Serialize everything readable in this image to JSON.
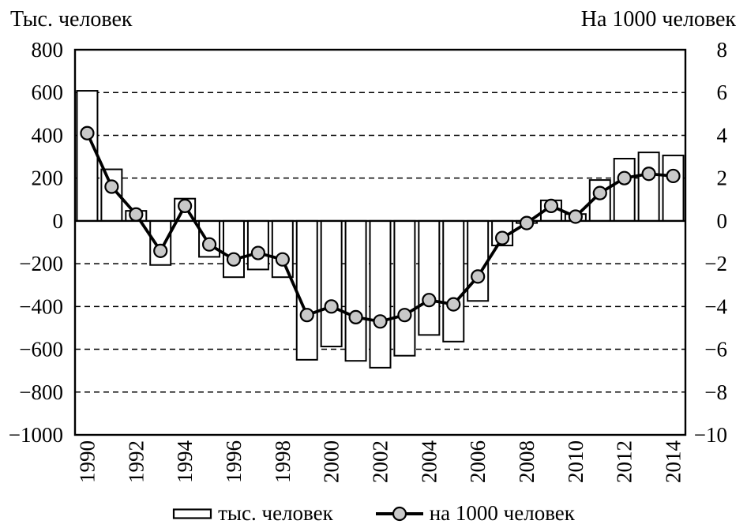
{
  "chart_data": {
    "type": "bar",
    "subtype": "combo-bar-line-dual-axis",
    "x": [
      1990,
      1991,
      1992,
      1993,
      1994,
      1995,
      1996,
      1997,
      1998,
      1999,
      2000,
      2001,
      2002,
      2003,
      2004,
      2005,
      2006,
      2007,
      2008,
      2009,
      2010,
      2011,
      2012,
      2013,
      2014
    ],
    "series": [
      {
        "name": "тыс. человек",
        "type": "bar",
        "axis": "left",
        "values": [
          608,
          241,
          47,
          -206,
          104,
          -168,
          -263,
          -227,
          -263,
          -649,
          -587,
          -654,
          -686,
          -630,
          -533,
          -564,
          -374,
          -115,
          -10,
          96,
          32,
          191,
          291,
          320,
          306
        ]
      },
      {
        "name": "на 1000 человек",
        "type": "line",
        "axis": "right",
        "values": [
          4.1,
          1.6,
          0.3,
          -1.4,
          0.7,
          -1.1,
          -1.8,
          -1.5,
          -1.8,
          -4.4,
          -4.0,
          -4.5,
          -4.7,
          -4.4,
          -3.7,
          -3.9,
          -2.6,
          -0.8,
          -0.1,
          0.7,
          0.2,
          1.3,
          2.0,
          2.2,
          2.1
        ]
      }
    ],
    "left_axis": {
      "title": "Тыс. человек",
      "min": -1000,
      "max": 800,
      "tick_step": 200,
      "tick_labels": [
        "800",
        "600",
        "400",
        "200",
        "0",
        "−200",
        "−400",
        "−600",
        "−800",
        "−1000"
      ]
    },
    "right_axis": {
      "title": "На 1000 человек",
      "min": -10,
      "max": 8,
      "tick_step": 2,
      "tick_labels": [
        "8",
        "6",
        "4",
        "2",
        "0",
        "−2",
        "−4",
        "−6",
        "−8",
        "−10"
      ]
    },
    "x_axis": {
      "tick_labels": [
        "1990",
        "1992",
        "1994",
        "1996",
        "1998",
        "2000",
        "2002",
        "2004",
        "2006",
        "2008",
        "2010",
        "2012",
        "2014"
      ],
      "label_rotation_deg": -90
    },
    "grid": {
      "horizontal": "dashed",
      "vertical": "none",
      "zero_line": "solid"
    },
    "legend": {
      "position": "bottom",
      "items": [
        {
          "label": "тыс. человек",
          "marker": "bar-outline"
        },
        {
          "label": "на 1000 человек",
          "marker": "line-circle"
        }
      ]
    },
    "colors": {
      "background": "#ffffff",
      "bar_fill": "#ffffff",
      "bar_stroke": "#000000",
      "line": "#000000",
      "marker_fill": "#c9c9c9",
      "marker_stroke": "#000000",
      "text": "#000000"
    }
  }
}
